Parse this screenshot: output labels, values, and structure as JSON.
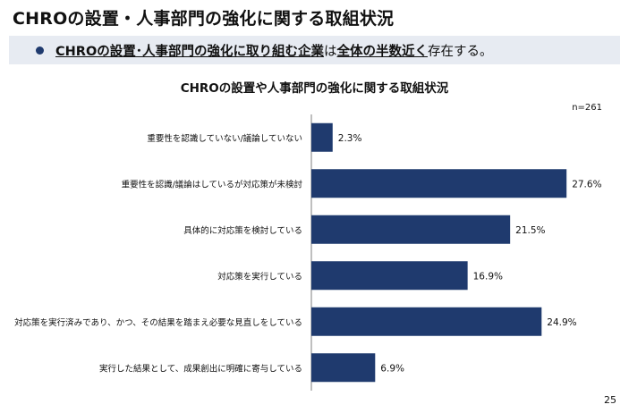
{
  "page": {
    "title": "CHROの設置・人事部門の強化に関する取組状況",
    "banner": {
      "emphasis_1": "CHROの設置･人事部門の強化に取り組む企業",
      "plain_1": "は",
      "emphasis_2": "全体の半数近く",
      "plain_2": "存在する。"
    },
    "page_number": "25"
  },
  "chart_data": {
    "type": "bar",
    "orientation": "horizontal",
    "title": "CHROの設置や人事部門の強化に関する取組状況",
    "annotation": "n=261",
    "categories": [
      "重要性を認識していない/議論していない",
      "重要性を認識/議論はしているが対応策が未検討",
      "具体的に対応策を検討している",
      "対応策を実行している",
      "対応策を実行済みであり、かつ、その結果を踏まえ必要な見直しをしている",
      "実行した結果として、成果創出に明確に寄与している"
    ],
    "values": [
      2.3,
      27.6,
      21.5,
      16.9,
      24.9,
      6.9
    ],
    "value_labels": [
      "2.3%",
      "27.6%",
      "21.5%",
      "16.9%",
      "24.9%",
      "6.9%"
    ],
    "xlim": [
      0,
      30
    ],
    "grid": false,
    "bar_color": "#1f3a6e"
  }
}
